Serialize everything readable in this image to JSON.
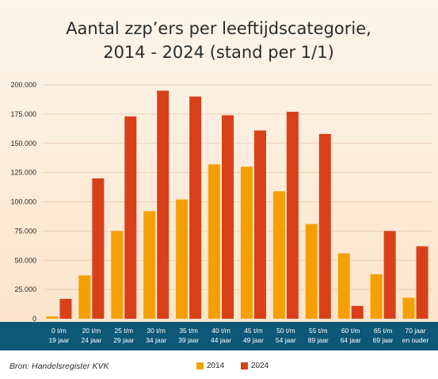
{
  "chart_data": {
    "type": "bar",
    "title_line1": "Aantal zzp’ers per leeftijdscategorie,",
    "title_line2": "2014 - 2024 (stand per 1/1)",
    "categories": [
      [
        "0 t/m",
        "19 jaar"
      ],
      [
        "20 t/m",
        "24 jaar"
      ],
      [
        "25 t/m",
        "29 jaar"
      ],
      [
        "30 t/m",
        "34 jaar"
      ],
      [
        "35 t/m",
        "39 jaar"
      ],
      [
        "40 t/m",
        "44 jaar"
      ],
      [
        "45 t/m",
        "49 jaar"
      ],
      [
        "50 t/m",
        "54 jaar"
      ],
      [
        "55 t/m",
        "89 jaar"
      ],
      [
        "60 t/m",
        "64 jaar"
      ],
      [
        "65 t/m",
        "69 jaar"
      ],
      [
        "70 jaar",
        "en ouder"
      ]
    ],
    "series": [
      {
        "name": "2014",
        "color": "#f5a000",
        "values": [
          2000,
          37000,
          75000,
          92000,
          102000,
          132000,
          130000,
          109000,
          81000,
          56000,
          38000,
          18000
        ]
      },
      {
        "name": "2024",
        "color": "#d9401a",
        "values": [
          17000,
          120000,
          173000,
          195000,
          190000,
          174000,
          161000,
          177000,
          158000,
          11000,
          75000,
          62000
        ]
      }
    ],
    "y_ticks": [
      "0",
      "25.000",
      "50.000",
      "75.000",
      "100.000",
      "125.000",
      "150.000",
      "175.000",
      "200.000"
    ],
    "ylim": [
      0,
      200000
    ],
    "grid": true,
    "legend_position": "bottom-center"
  },
  "source_note": "Bron: Handelsregister KVK",
  "colors": {
    "axis_band": "#0c5876",
    "background_top": "#fdf5ea",
    "background_bottom": "#fbe3c9"
  }
}
